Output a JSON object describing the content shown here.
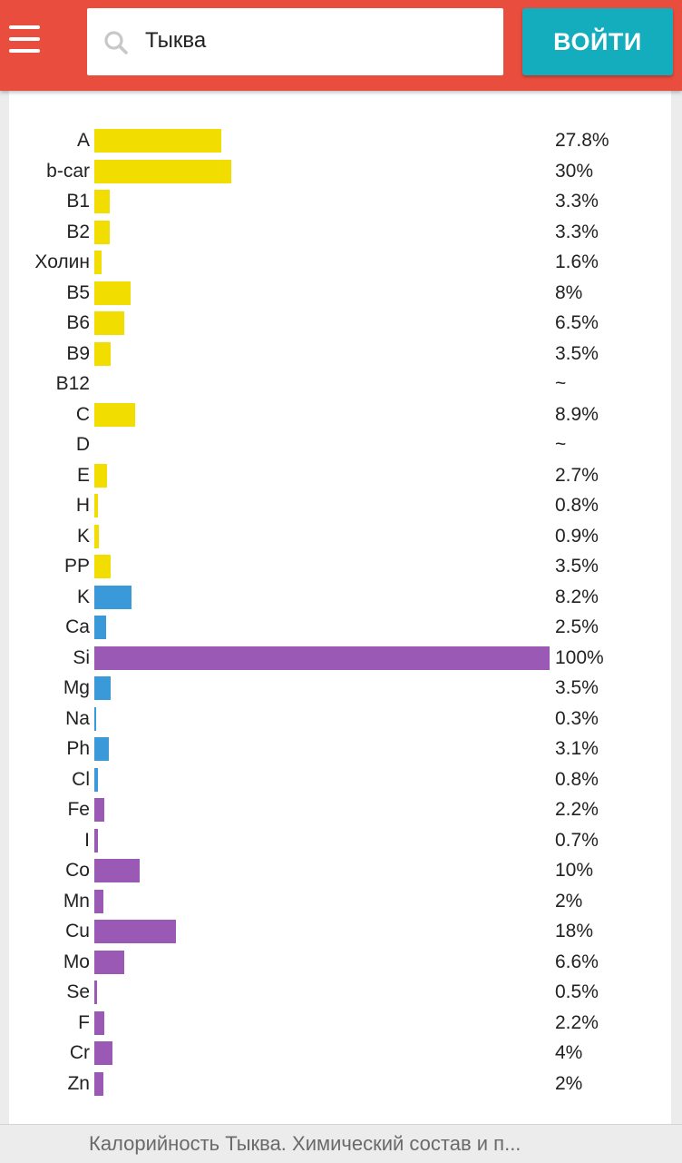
{
  "header": {
    "search_value": "Тыква",
    "login_label": "ВОЙТИ"
  },
  "colors": {
    "header_bg": "#e84d3d",
    "login_bg": "#14adbd",
    "vitamin": "#f2dd00",
    "macro": "#3a9ad9",
    "micro": "#9b59b6"
  },
  "chart_data": {
    "type": "bar",
    "orientation": "horizontal",
    "xlim": [
      0,
      100
    ],
    "rows": [
      {
        "label": "A",
        "value": 27.8,
        "display": "27.8%",
        "group": "vitamin"
      },
      {
        "label": "b-car",
        "value": 30,
        "display": "30%",
        "group": "vitamin"
      },
      {
        "label": "B1",
        "value": 3.3,
        "display": "3.3%",
        "group": "vitamin"
      },
      {
        "label": "B2",
        "value": 3.3,
        "display": "3.3%",
        "group": "vitamin"
      },
      {
        "label": "Холин",
        "value": 1.6,
        "display": "1.6%",
        "group": "vitamin"
      },
      {
        "label": "B5",
        "value": 8,
        "display": "8%",
        "group": "vitamin"
      },
      {
        "label": "B6",
        "value": 6.5,
        "display": "6.5%",
        "group": "vitamin"
      },
      {
        "label": "B9",
        "value": 3.5,
        "display": "3.5%",
        "group": "vitamin"
      },
      {
        "label": "B12",
        "value": null,
        "display": "~",
        "group": "vitamin"
      },
      {
        "label": "C",
        "value": 8.9,
        "display": "8.9%",
        "group": "vitamin"
      },
      {
        "label": "D",
        "value": null,
        "display": "~",
        "group": "vitamin"
      },
      {
        "label": "E",
        "value": 2.7,
        "display": "2.7%",
        "group": "vitamin"
      },
      {
        "label": "H",
        "value": 0.8,
        "display": "0.8%",
        "group": "vitamin"
      },
      {
        "label": "K",
        "value": 0.9,
        "display": "0.9%",
        "group": "vitamin"
      },
      {
        "label": "PP",
        "value": 3.5,
        "display": "3.5%",
        "group": "vitamin"
      },
      {
        "label": "K",
        "value": 8.2,
        "display": "8.2%",
        "group": "macro"
      },
      {
        "label": "Ca",
        "value": 2.5,
        "display": "2.5%",
        "group": "macro"
      },
      {
        "label": "Si",
        "value": 100,
        "display": "100%",
        "group": "micro"
      },
      {
        "label": "Mg",
        "value": 3.5,
        "display": "3.5%",
        "group": "macro"
      },
      {
        "label": "Na",
        "value": 0.3,
        "display": "0.3%",
        "group": "macro"
      },
      {
        "label": "Ph",
        "value": 3.1,
        "display": "3.1%",
        "group": "macro"
      },
      {
        "label": "Cl",
        "value": 0.8,
        "display": "0.8%",
        "group": "macro"
      },
      {
        "label": "Fe",
        "value": 2.2,
        "display": "2.2%",
        "group": "micro"
      },
      {
        "label": "I",
        "value": 0.7,
        "display": "0.7%",
        "group": "micro"
      },
      {
        "label": "Co",
        "value": 10,
        "display": "10%",
        "group": "micro"
      },
      {
        "label": "Mn",
        "value": 2,
        "display": "2%",
        "group": "micro"
      },
      {
        "label": "Cu",
        "value": 18,
        "display": "18%",
        "group": "micro"
      },
      {
        "label": "Mo",
        "value": 6.6,
        "display": "6.6%",
        "group": "micro"
      },
      {
        "label": "Se",
        "value": 0.5,
        "display": "0.5%",
        "group": "micro"
      },
      {
        "label": "F",
        "value": 2.2,
        "display": "2.2%",
        "group": "micro"
      },
      {
        "label": "Cr",
        "value": 4,
        "display": "4%",
        "group": "micro"
      },
      {
        "label": "Zn",
        "value": 2,
        "display": "2%",
        "group": "micro"
      }
    ]
  },
  "footer": {
    "title": "Калорийность Тыква. Химический состав и п..."
  }
}
